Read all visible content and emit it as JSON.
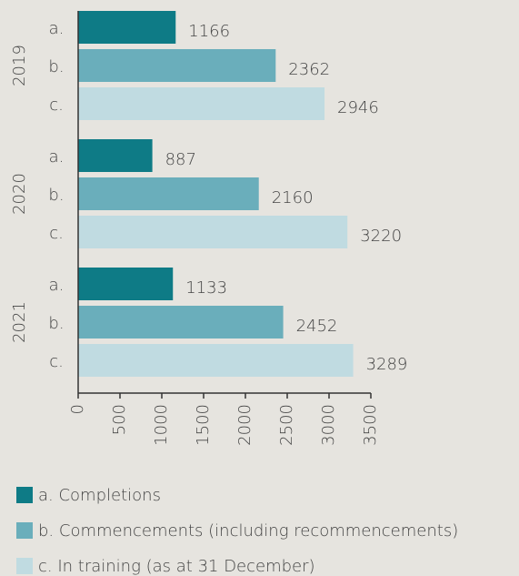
{
  "chart_data": {
    "type": "hbar",
    "categories": [
      "2019",
      "2020",
      "2021"
    ],
    "series": [
      {
        "name": "a. Completions",
        "label": "a.",
        "color": "#0e7b86",
        "values": [
          1166,
          887,
          1133
        ]
      },
      {
        "name": "b. Commencements (including recommencements)",
        "label": "b.",
        "color": "#6aaebb",
        "values": [
          2362,
          2160,
          2452
        ]
      },
      {
        "name": "c. In training (as at 31 December)",
        "label": "c.",
        "color": "#c0dbe1",
        "values": [
          2946,
          3220,
          3289
        ]
      }
    ],
    "xlim": [
      0,
      3500
    ],
    "xticks": [
      0,
      500,
      1000,
      1500,
      2000,
      2500,
      3000,
      3500
    ]
  }
}
